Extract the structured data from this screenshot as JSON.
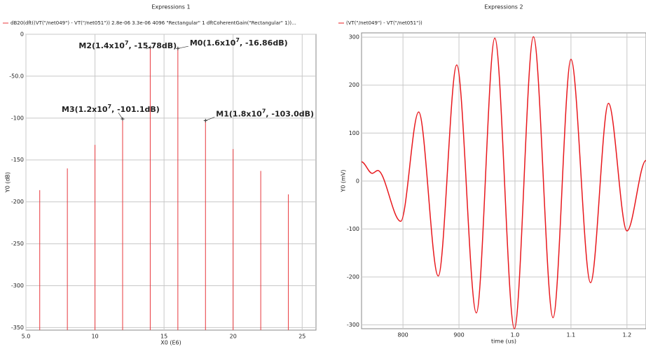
{
  "chart_data": [
    {
      "type": "stem",
      "title": "Expressions 1",
      "series": [
        {
          "name": "dB20(dft((VT(\"/net049\") - VT(\"/net051\")) 2.8e-06 3.3e-06 4096 \"Rectangular\" 1 dftCoherentGain(\"Rectangular\" 1))...",
          "color": "#e8383d",
          "x": [
            6,
            8,
            10,
            12,
            14,
            16,
            18,
            20,
            22,
            24
          ],
          "values": [
            -186,
            -160,
            -132,
            -101.1,
            -15.78,
            -16.86,
            -103.0,
            -137,
            -163,
            -191
          ]
        }
      ],
      "xlabel": "X0 (E6)",
      "ylabel": "Y0 (dB)",
      "xlim": [
        5,
        26
      ],
      "ylim": [
        -353,
        0
      ],
      "xticks": [
        {
          "value": 5,
          "label": "5.0"
        },
        10,
        15,
        20,
        25
      ],
      "yticks": [
        0,
        {
          "value": -50,
          "label": "-50.0"
        },
        -100,
        -150,
        -200,
        -250,
        -300,
        -350
      ],
      "grid": true,
      "annotations": [
        {
          "text": "M2(1.4x10",
          "exp": "7",
          "rest": ", -15.78dB)",
          "x": 14,
          "y": -15.78
        },
        {
          "text": "M0(1.6x10",
          "exp": "7",
          "rest": ", -16.86dB)",
          "x": 16,
          "y": -16.86
        },
        {
          "text": "M3(1.2x10",
          "exp": "7",
          "rest": ", -101.1dB)",
          "x": 12,
          "y": -101.1
        },
        {
          "text": "M1(1.8x10",
          "exp": "7",
          "rest": ", -103.0dB)",
          "x": 18,
          "y": -103.0
        }
      ]
    },
    {
      "type": "line",
      "title": "Expressions 2",
      "series": [
        {
          "name": "(VT(\"/net049\") - VT(\"/net051\"))",
          "color": "#e8181d",
          "x": [
            0.726,
            0.745,
            0.755,
            0.796,
            0.828,
            0.863,
            0.896,
            0.931,
            0.964,
            0.999,
            1.033,
            1.068,
            1.1,
            1.135,
            1.167,
            1.2,
            1.234
          ],
          "values": [
            40,
            16,
            22,
            -84,
            144,
            -198,
            242,
            -275,
            298,
            -308,
            301,
            -285,
            254,
            -212,
            162,
            -104,
            43
          ]
        }
      ],
      "xlabel": "time (us)",
      "ylabel": "Y0 (mV)",
      "xlim": [
        0.726,
        1.234
      ],
      "ylim": [
        -308,
        309
      ],
      "xticks": [
        {
          "value": 0.8,
          "label": "800"
        },
        {
          "value": 0.9,
          "label": "900"
        },
        {
          "value": 1.0,
          "label": "1.0"
        },
        1.1,
        1.2
      ],
      "yticks": [
        300,
        200,
        100,
        0,
        -100,
        -200,
        -300
      ],
      "grid": true
    }
  ]
}
